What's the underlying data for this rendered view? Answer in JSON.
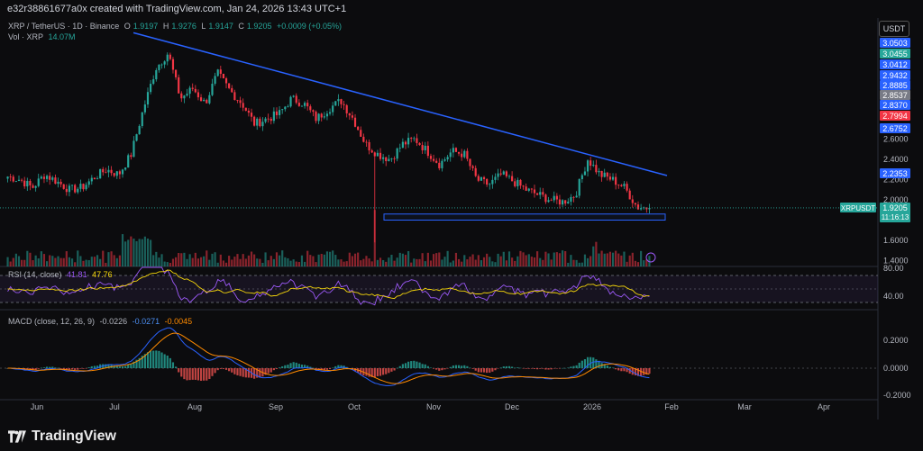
{
  "header": {
    "credit": "e32r38861677a0x created with TradingView.com, Jan 24, 2026 13:43 UTC+1"
  },
  "legend": {
    "symbol": "XRP / TetherUS · 1D · Binance",
    "open_label": "O",
    "open": "1.9197",
    "high_label": "H",
    "high": "1.9276",
    "low_label": "L",
    "low": "1.9147",
    "close_label": "C",
    "close": "1.9205",
    "change": "+0.0009 (+0.05%)",
    "vol_label": "Vol · XRP",
    "vol": "14.07M"
  },
  "rsi_legend": {
    "label": "RSI (14, close)",
    "v1": "41.81",
    "v2": "47.76"
  },
  "macd_legend": {
    "label": "MACD (close, 12, 26, 9)",
    "v1": "-0.0226",
    "v2": "-0.0271",
    "v3": "-0.0045"
  },
  "unit_button": "USDT",
  "price_axis": {
    "ticks": [
      "2.6000",
      "2.4000",
      "2.2000",
      "2.0000",
      "1.6000",
      "1.4000"
    ],
    "badges": [
      {
        "label": "3.0503",
        "color": "#2962ff"
      },
      {
        "label": "3.0455",
        "color": "#26a69a"
      },
      {
        "label": "3.0412",
        "color": "#2962ff"
      },
      {
        "label": "2.9432",
        "color": "#2962ff"
      },
      {
        "label": "2.8885",
        "color": "#2962ff"
      },
      {
        "label": "2.8537",
        "color": "#787b86"
      },
      {
        "label": "2.8370",
        "color": "#2962ff"
      },
      {
        "label": "2.7994",
        "color": "#f23645"
      },
      {
        "label": "2.6752",
        "color": "#2962ff"
      },
      {
        "label": "2.2353",
        "color": "#2962ff"
      }
    ],
    "last_price": "1.9205",
    "countdown": "11:16:13",
    "symbol_tag": "XRPUSDT"
  },
  "rsi_axis": {
    "ticks": [
      "80.00",
      "40.00"
    ]
  },
  "macd_axis": {
    "ticks": [
      "0.2000",
      "0.0000",
      "-0.2000"
    ]
  },
  "time_axis": [
    "Jun",
    "Jul",
    "Aug",
    "Sep",
    "Oct",
    "Nov",
    "Dec",
    "2026",
    "Feb",
    "Mar",
    "Apr"
  ],
  "brand": "TradingView",
  "colors": {
    "up": "#26a69a",
    "down": "#f23645",
    "trend": "#2962ff",
    "rsi": "#9b59f6",
    "rsi_ma": "#f5d60a",
    "macd": "#2962ff",
    "signal": "#ff8a00"
  },
  "chart_data": {
    "type": "candlestick",
    "symbol": "XRPUSDT",
    "interval": "1D",
    "x_labels": [
      "Jun",
      "Jul",
      "Aug",
      "Sep",
      "Oct",
      "Nov",
      "Dec",
      "2026",
      "Feb",
      "Mar",
      "Apr"
    ],
    "close_path": [
      2.23,
      2.2,
      2.12,
      2.25,
      2.18,
      2.1,
      2.12,
      2.22,
      2.3,
      2.25,
      2.45,
      2.9,
      3.3,
      3.45,
      3.0,
      3.1,
      2.95,
      3.25,
      3.08,
      2.95,
      2.75,
      2.8,
      2.85,
      3.0,
      2.95,
      2.8,
      2.9,
      2.98,
      2.8,
      2.55,
      2.45,
      2.4,
      2.55,
      2.6,
      2.48,
      2.35,
      2.48,
      2.45,
      2.2,
      2.15,
      2.25,
      2.18,
      2.1,
      2.05,
      2.0,
      1.98,
      2.05,
      2.4,
      2.25,
      2.2,
      2.12,
      1.93,
      1.92
    ],
    "trendline": {
      "from": {
        "period": "Jul",
        "price": 3.65
      },
      "to": {
        "period": "Jan 2026",
        "price": 2.24
      }
    },
    "support_zone": {
      "low": 1.8,
      "high": 1.86
    },
    "last": 1.9205,
    "ylim": [
      1.3,
      3.1
    ]
  }
}
